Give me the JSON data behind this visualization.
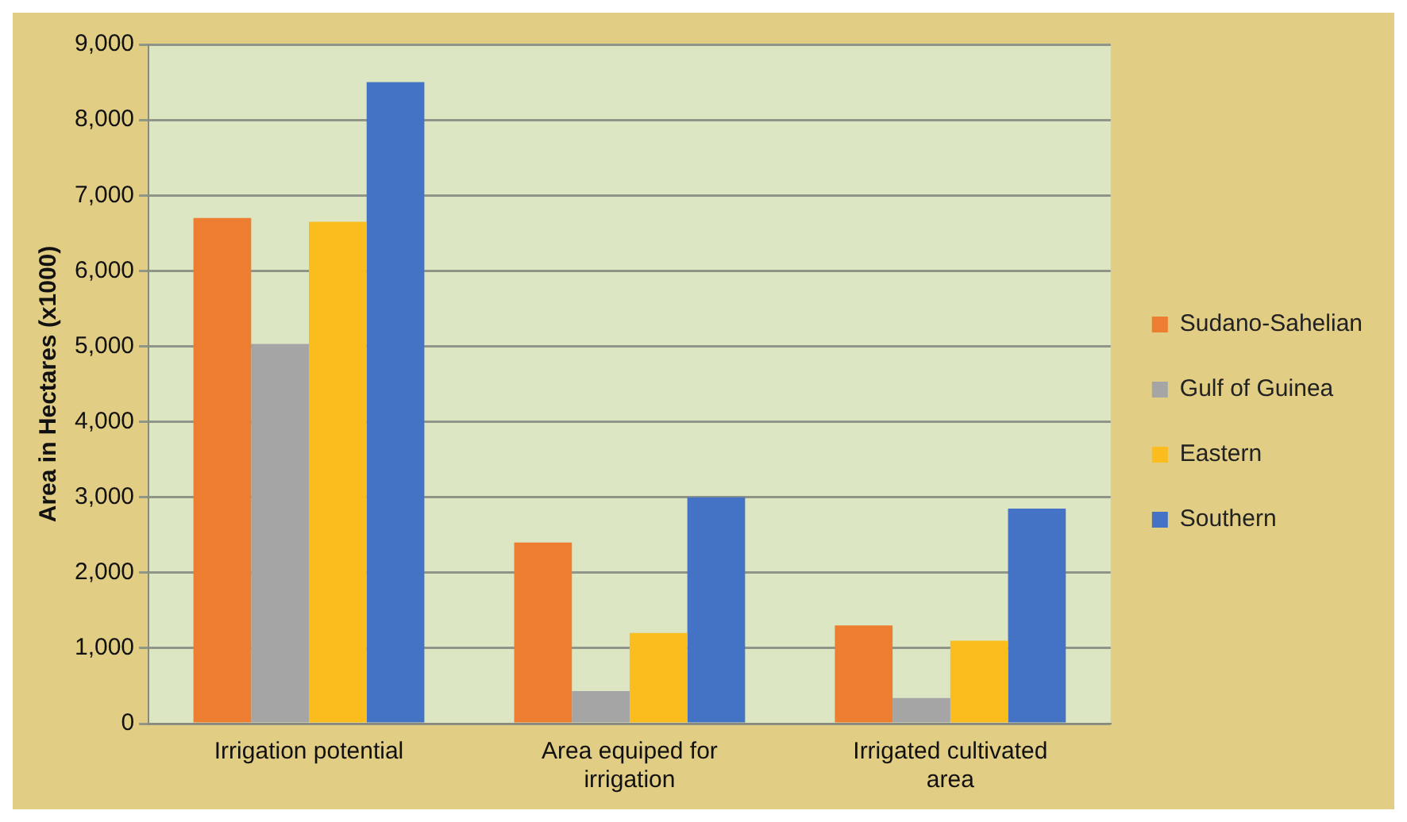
{
  "chart_data": {
    "type": "bar",
    "ylabel": "Area in Hectares (x1000)",
    "categories": [
      "Irrigation potential",
      "Area equiped for irrigation",
      "Irrigated cultivated area"
    ],
    "series": [
      {
        "name": "Sudano-Sahelian",
        "color": "#ed7d31",
        "values": [
          6700,
          2400,
          1300
        ]
      },
      {
        "name": "Gulf of Guinea",
        "color": "#a5a5a5",
        "values": [
          5030,
          430,
          340
        ]
      },
      {
        "name": "Eastern",
        "color": "#fbbc1e",
        "values": [
          6650,
          1200,
          1100
        ]
      },
      {
        "name": "Southern",
        "color": "#4472c4",
        "values": [
          8500,
          3000,
          2850
        ]
      }
    ],
    "ylim": [
      0,
      9000
    ],
    "yticks": [
      0,
      {
        "value": 1000,
        "label": "1,000"
      },
      {
        "value": 2000,
        "label": "2,000"
      },
      {
        "value": 3000,
        "label": "3,000"
      },
      {
        "value": 4000,
        "label": "4,000"
      },
      {
        "value": 5000,
        "label": "5,000"
      },
      {
        "value": 6000,
        "label": "6,000"
      },
      {
        "value": 7000,
        "label": "7,000"
      },
      {
        "value": 8000,
        "label": "8,000"
      },
      {
        "value": 9000,
        "label": "9,000"
      }
    ],
    "grid": "y",
    "legend": "right"
  }
}
